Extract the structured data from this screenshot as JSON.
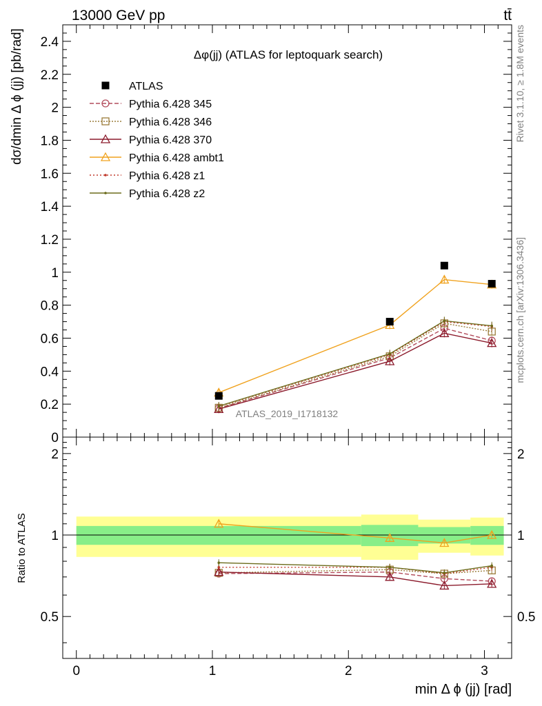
{
  "header": {
    "left": "13000 GeV pp",
    "right": "tt̄",
    "right_side_1": "Rivet 3.1.10, ≥ 1.8M events",
    "right_side_2": "mcplots.cern.ch [arXiv:1306.3436]"
  },
  "chart_data": [
    {
      "type": "line",
      "title": "Δφ(jj) (ATLAS for leptoquark search)",
      "ylabel": "dσ/dmin Δ ϕ (jj) [pb/rad]",
      "xlabel": "min Δ ϕ (jj) [rad]",
      "watermark": "ATLAS_2019_I1718132",
      "xlim": [
        -0.1,
        3.2
      ],
      "ylim": [
        0,
        2.5
      ],
      "y_ticks": [
        "0.2",
        "0.4",
        "0.6",
        "0.8",
        "1",
        "1.2",
        "1.4",
        "1.6",
        "1.8",
        "2",
        "2.2",
        "2.4"
      ],
      "x": [
        1.047,
        2.304,
        2.705,
        3.054
      ],
      "x_bins": [
        [
          0,
          2.094
        ],
        [
          2.094,
          2.513
        ],
        [
          2.513,
          2.897
        ],
        [
          2.897,
          3.142
        ]
      ],
      "data": {
        "name": "ATLAS",
        "values": [
          0.25,
          0.7,
          1.04,
          0.93
        ],
        "color": "#000000"
      },
      "series": [
        {
          "name": "Pythia 6.428 345",
          "values": [
            0.175,
            0.48,
            0.66,
            0.585
          ],
          "color": "#b24b5b",
          "dash": "6,3",
          "marker": "circle"
        },
        {
          "name": "Pythia 6.428 346",
          "values": [
            0.178,
            0.49,
            0.69,
            0.64
          ],
          "color": "#9a7b39",
          "dash": "2,2",
          "marker": "square"
        },
        {
          "name": "Pythia 6.428 370",
          "values": [
            0.17,
            0.46,
            0.63,
            0.57
          ],
          "color": "#8b1a2b",
          "dash": "",
          "marker": "triangle"
        },
        {
          "name": "Pythia 6.428 ambt1",
          "values": [
            0.27,
            0.68,
            0.955,
            0.925
          ],
          "color": "#f0a21e",
          "dash": "",
          "marker": "triangle"
        },
        {
          "name": "Pythia 6.428 z1",
          "values": [
            0.185,
            0.5,
            0.7,
            0.67
          ],
          "color": "#c0392b",
          "dash": "2,3",
          "marker": "dot"
        },
        {
          "name": "Pythia 6.428 z2",
          "values": [
            0.188,
            0.505,
            0.705,
            0.675
          ],
          "color": "#6b6b1a",
          "dash": "",
          "marker": "dot"
        }
      ]
    },
    {
      "type": "line",
      "ylabel": "Ratio to ATLAS",
      "xlim": [
        -0.1,
        3.2
      ],
      "ylim": [
        0.35,
        2.3
      ],
      "y_ticks": [
        "0.5",
        "1",
        "2"
      ],
      "x_ticks": [
        "0",
        "1",
        "2",
        "3"
      ],
      "band_inner": [
        0.08,
        0.09,
        0.07,
        0.08
      ],
      "band_outer": [
        0.17,
        0.19,
        0.14,
        0.16
      ],
      "series": [
        {
          "name": "Pythia 6.428 345",
          "values": [
            0.72,
            0.73,
            0.69,
            0.675
          ]
        },
        {
          "name": "Pythia 6.428 346",
          "values": [
            0.725,
            0.745,
            0.72,
            0.74
          ]
        },
        {
          "name": "Pythia 6.428 370",
          "values": [
            0.73,
            0.7,
            0.65,
            0.66
          ]
        },
        {
          "name": "Pythia 6.428 ambt1",
          "values": [
            1.1,
            0.975,
            0.935,
            1.0
          ]
        },
        {
          "name": "Pythia 6.428 z1",
          "values": [
            0.76,
            0.76,
            0.72,
            0.76
          ]
        },
        {
          "name": "Pythia 6.428 z2",
          "values": [
            0.79,
            0.76,
            0.725,
            0.77
          ]
        }
      ]
    }
  ]
}
